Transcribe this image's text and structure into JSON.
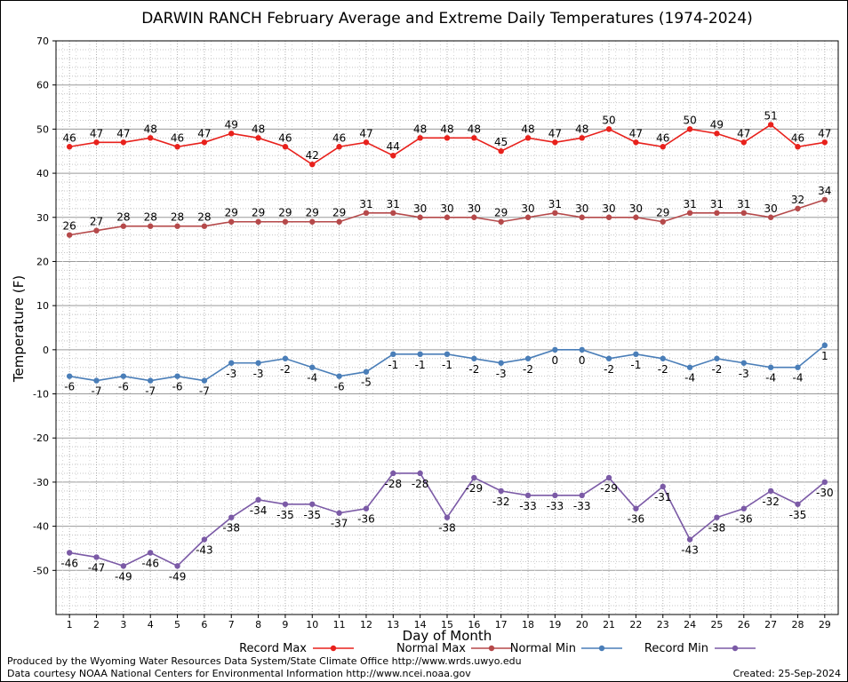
{
  "chart_data": {
    "type": "line",
    "title": "DARWIN RANCH February Average and Extreme Daily Temperatures (1974-2024)",
    "xlabel": "Day of Month",
    "ylabel": "Temperature (F)",
    "x": [
      1,
      2,
      3,
      4,
      5,
      6,
      7,
      8,
      9,
      10,
      11,
      12,
      13,
      14,
      15,
      16,
      17,
      18,
      19,
      20,
      21,
      22,
      23,
      24,
      25,
      26,
      27,
      28,
      29
    ],
    "xlim": [
      0.5,
      29.5
    ],
    "ylim": [
      -60,
      70
    ],
    "yticks": [
      70,
      60,
      50,
      40,
      30,
      20,
      10,
      0,
      -10,
      -20,
      -30,
      -40,
      -50
    ],
    "grid": true,
    "legend_position": "bottom",
    "series": [
      {
        "name": "Record Max",
        "color": "#e8211c",
        "values": [
          46,
          47,
          47,
          48,
          46,
          47,
          49,
          48,
          46,
          42,
          46,
          47,
          44,
          48,
          48,
          48,
          45,
          48,
          47,
          48,
          50,
          47,
          46,
          50,
          49,
          47,
          51,
          46,
          47
        ]
      },
      {
        "name": "Normal Max",
        "color": "#b5494a",
        "values": [
          26,
          27,
          28,
          28,
          28,
          28,
          29,
          29,
          29,
          29,
          29,
          31,
          31,
          30,
          30,
          30,
          29,
          30,
          31,
          30,
          30,
          30,
          29,
          31,
          31,
          31,
          30,
          32,
          34
        ]
      },
      {
        "name": "Normal Min",
        "color": "#4a7eb8",
        "values": [
          -6,
          -7,
          -6,
          -7,
          -6,
          -7,
          -3,
          -3,
          -2,
          -4,
          -6,
          -5,
          -1,
          -1,
          -1,
          -2,
          -3,
          -2,
          0,
          0,
          -2,
          -1,
          -2,
          -4,
          -2,
          -3,
          -4,
          -4,
          1
        ]
      },
      {
        "name": "Record Min",
        "color": "#7b5aa6",
        "values": [
          -46,
          -47,
          -49,
          -46,
          -49,
          -43,
          -38,
          -34,
          -35,
          -35,
          -37,
          -36,
          -28,
          -28,
          -38,
          -29,
          -32,
          -33,
          -33,
          -33,
          -29,
          -36,
          -31,
          -43,
          -38,
          -36,
          -32,
          -35,
          -30
        ]
      }
    ]
  },
  "footer": {
    "left_line1": "Produced by the Wyoming Water Resources Data System/State Climate Office http://www.wrds.uwyo.edu",
    "left_line2": "Data courtesy NOAA National Centers for Environmental Information http://www.ncei.noaa.gov",
    "created": "Created:  25-Sep-2024"
  }
}
